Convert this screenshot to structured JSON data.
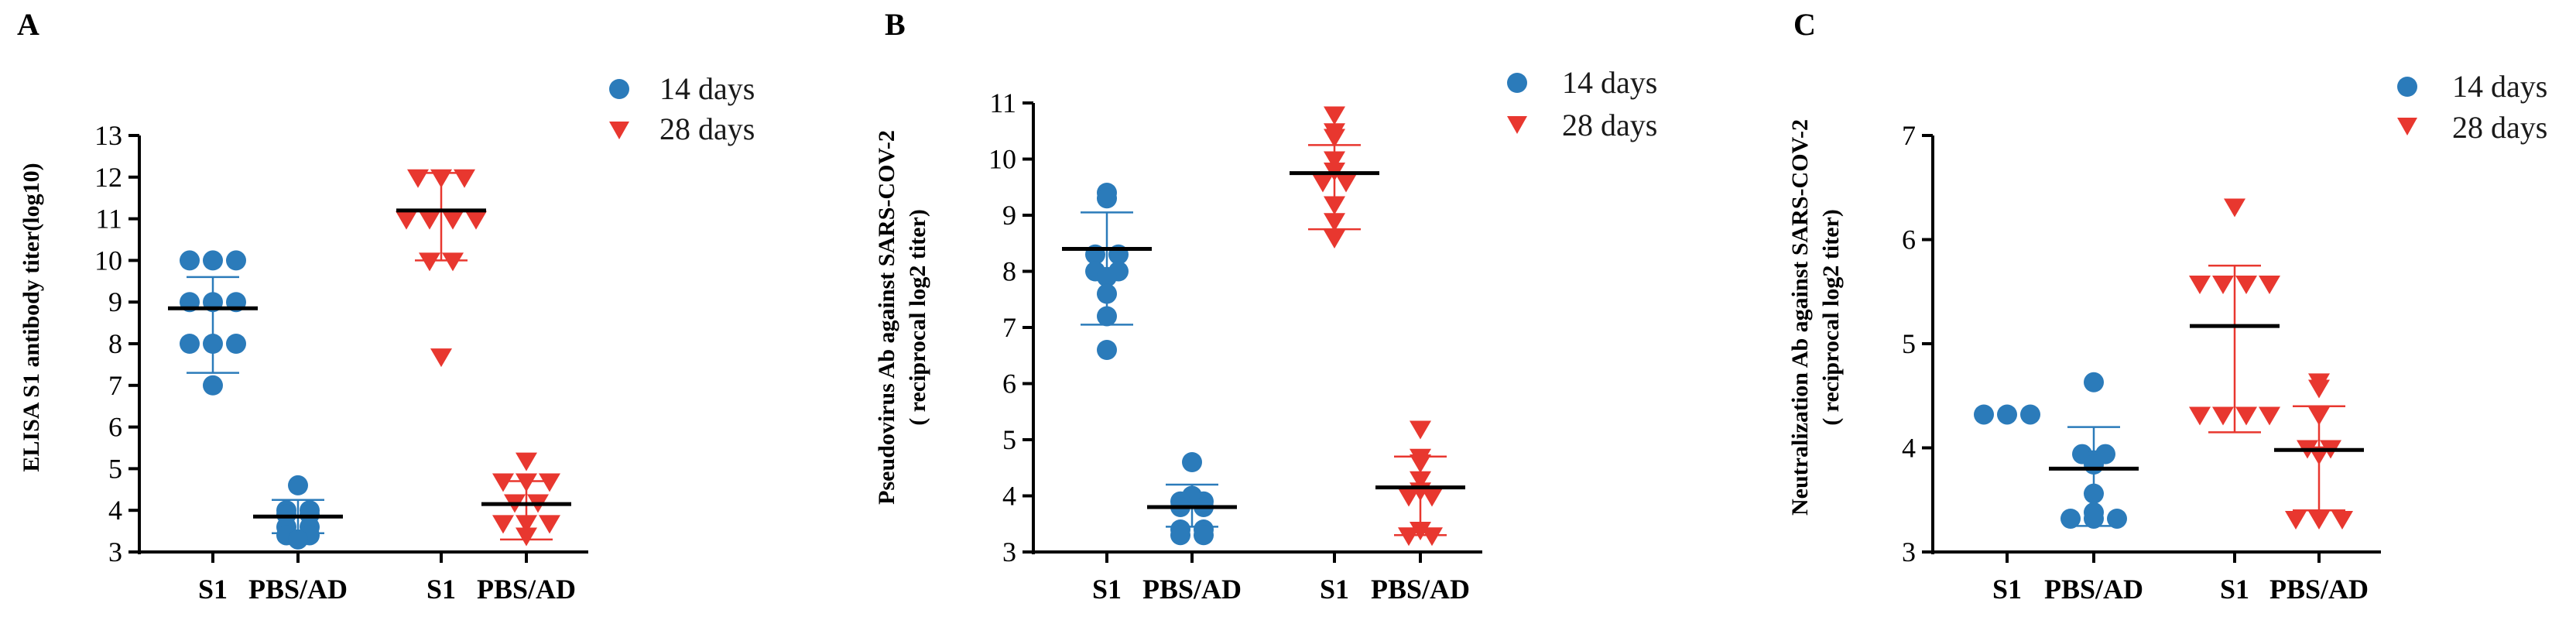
{
  "colors": {
    "days14": "#2b7bba",
    "days28": "#e8372f",
    "mean": "#000000",
    "axis": "#000000"
  },
  "chart_data": [
    {
      "type": "scatter",
      "panel": "A",
      "ylabel": "ELISA S1 antibody titer(log10)",
      "ylim": [
        3,
        13
      ],
      "yticks": [
        3,
        4,
        5,
        6,
        7,
        8,
        9,
        10,
        11,
        12,
        13
      ],
      "categories": [
        "S1",
        "PBS/AD",
        "S1",
        "PBS/AD"
      ],
      "legend": [
        "14 days",
        "28 days"
      ],
      "groups": [
        {
          "category": "S1",
          "series": "14 days",
          "points": [
            10,
            10,
            10,
            9,
            9,
            9,
            8,
            8,
            8,
            7
          ],
          "mean": 8.85,
          "sd": [
            7.3,
            9.6
          ]
        },
        {
          "category": "PBS/AD",
          "series": "14 days",
          "points": [
            4.6,
            4.0,
            4.0,
            3.9,
            3.9,
            3.6,
            3.6,
            3.4,
            3.4,
            3.3
          ],
          "mean": 3.85,
          "sd": [
            3.45,
            4.25
          ]
        },
        {
          "category": "S1",
          "series": "28 days",
          "points": [
            12,
            12,
            12,
            11,
            11,
            11,
            11,
            10,
            10,
            7.7
          ],
          "mean": 11.2,
          "sd": [
            10.0,
            12.1
          ]
        },
        {
          "category": "PBS/AD",
          "series": "28 days",
          "points": [
            5.2,
            4.7,
            4.7,
            4.7,
            4.2,
            4.2,
            3.7,
            3.7,
            3.7,
            3.4
          ],
          "mean": 4.15,
          "sd": [
            3.3,
            4.7
          ]
        }
      ]
    },
    {
      "type": "scatter",
      "panel": "B",
      "ylabel": "Pseudovirus Ab against SARS-COV-2",
      "ylabel2": "( reciprocal log2 titer)",
      "ylim": [
        3,
        11
      ],
      "yticks": [
        3,
        4,
        5,
        6,
        7,
        8,
        9,
        10,
        11
      ],
      "categories": [
        "S1",
        "PBS/AD",
        "S1",
        "PBS/AD"
      ],
      "legend": [
        "14 days",
        "28 days"
      ],
      "groups": [
        {
          "category": "S1",
          "series": "14 days",
          "points": [
            9.4,
            9.3,
            8.3,
            8.3,
            8.0,
            8.0,
            7.9,
            7.6,
            7.2,
            6.6
          ],
          "mean": 8.4,
          "sd": [
            7.05,
            9.05
          ]
        },
        {
          "category": "PBS/AD",
          "series": "14 days",
          "points": [
            4.6,
            4.0,
            3.9,
            3.9,
            3.8,
            3.8,
            3.4,
            3.4,
            3.3,
            3.3
          ],
          "mean": 3.8,
          "sd": [
            3.45,
            4.2
          ]
        },
        {
          "category": "S1",
          "series": "28 days",
          "points": [
            10.8,
            10.5,
            10.4,
            10.0,
            9.8,
            9.6,
            9.6,
            9.2,
            8.9,
            8.6
          ],
          "mean": 9.75,
          "sd": [
            8.75,
            10.25
          ]
        },
        {
          "category": "PBS/AD",
          "series": "28 days",
          "points": [
            5.2,
            4.7,
            4.6,
            4.3,
            4.1,
            4.0,
            4.0,
            3.4,
            3.3,
            3.3
          ],
          "mean": 4.15,
          "sd": [
            3.3,
            4.7
          ]
        }
      ]
    },
    {
      "type": "scatter",
      "panel": "C",
      "ylabel": "Neutralization Ab against SARS-COV-2",
      "ylabel2": "( reciprocal log2 titer)",
      "ylim": [
        3,
        7
      ],
      "yticks": [
        3,
        4,
        5,
        6,
        7
      ],
      "categories": [
        "S1",
        "PBS/AD",
        "S1",
        "PBS/AD"
      ],
      "legend": [
        "14 days",
        "28 days"
      ],
      "groups": [
        {
          "category": "S1",
          "series": "14 days",
          "points": [
            4.32,
            4.32,
            4.32
          ],
          "mean": null,
          "sd": null
        },
        {
          "category": "PBS/AD",
          "series": "14 days",
          "points": [
            4.63,
            3.94,
            3.94,
            3.88,
            3.84,
            3.56,
            3.38,
            3.32,
            3.32,
            3.32
          ],
          "mean": 3.8,
          "sd": [
            3.25,
            4.2
          ]
        },
        {
          "category": "S1",
          "series": "28 days",
          "points": [
            6.32,
            5.58,
            5.58,
            5.58,
            5.58,
            4.32,
            4.32,
            4.32,
            4.32
          ],
          "mean": 5.17,
          "sd": [
            4.15,
            5.75
          ]
        },
        {
          "category": "PBS/AD",
          "series": "28 days",
          "points": [
            4.64,
            4.58,
            4.32,
            4.0,
            4.0,
            3.94,
            3.32,
            3.32,
            3.32
          ],
          "mean": 3.98,
          "sd": [
            3.4,
            4.4
          ]
        }
      ]
    }
  ]
}
